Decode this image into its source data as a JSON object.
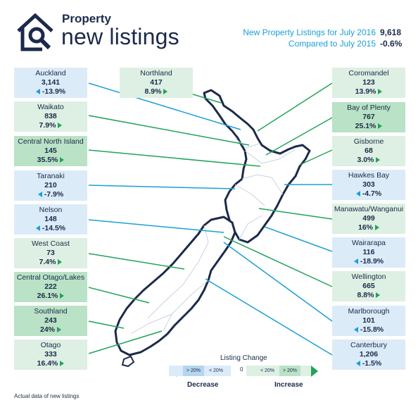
{
  "header": {
    "title_top": "Property",
    "title_main": "new listings",
    "listings_label": "New Property Listings for July 2016",
    "listings_value": "9,618",
    "compare_label": "Compared to July 2015",
    "compare_value": "-0.6%"
  },
  "regions": [
    {
      "key": "auckland",
      "name": "Auckland",
      "count": "3,141",
      "change": "-13.9%",
      "trend": "decrease"
    },
    {
      "key": "northland",
      "name": "Northland",
      "count": "417",
      "change": "8.9%",
      "trend": "increase"
    },
    {
      "key": "coromandel",
      "name": "Coromandel",
      "count": "123",
      "change": "13.9%",
      "trend": "increase"
    },
    {
      "key": "waikato",
      "name": "Waikato",
      "count": "838",
      "change": "7.9%",
      "trend": "increase"
    },
    {
      "key": "bay_of_plenty",
      "name": "Bay of Plenty",
      "count": "767",
      "change": "25.1%",
      "trend": "increase"
    },
    {
      "key": "central_north_island",
      "name": "Central North Island",
      "count": "145",
      "change": "35.5%",
      "trend": "increase"
    },
    {
      "key": "gisborne",
      "name": "Gisborne",
      "count": "68",
      "change": "3.0%",
      "trend": "increase"
    },
    {
      "key": "taranaki",
      "name": "Taranaki",
      "count": "210",
      "change": "-7.9%",
      "trend": "decrease"
    },
    {
      "key": "hawkes_bay",
      "name": "Hawkes Bay",
      "count": "303",
      "change": "-4.7%",
      "trend": "decrease"
    },
    {
      "key": "nelson",
      "name": "Nelson",
      "count": "148",
      "change": "-14.5%",
      "trend": "decrease"
    },
    {
      "key": "manawatu",
      "name": "Manawatu/Wanganui",
      "count": "499",
      "change": "16%",
      "trend": "increase"
    },
    {
      "key": "west_coast",
      "name": "West Coast",
      "count": "73",
      "change": "7.4%",
      "trend": "increase"
    },
    {
      "key": "wairarapa",
      "name": "Wairarapa",
      "count": "116",
      "change": "-18.9%",
      "trend": "decrease"
    },
    {
      "key": "central_otago",
      "name": "Central Otago/Lakes",
      "count": "222",
      "change": "26.1%",
      "trend": "increase"
    },
    {
      "key": "wellington",
      "name": "Wellington",
      "count": "665",
      "change": "8.8%",
      "trend": "increase"
    },
    {
      "key": "southland",
      "name": "Southland",
      "count": "243",
      "change": "24%",
      "trend": "increase"
    },
    {
      "key": "marlborough",
      "name": "Marlborough",
      "count": "101",
      "change": "-15.8%",
      "trend": "decrease"
    },
    {
      "key": "otago",
      "name": "Otago",
      "count": "333",
      "change": "16.4%",
      "trend": "increase"
    },
    {
      "key": "canterbury",
      "name": "Canterbury",
      "count": "1,206",
      "change": "-1.5%",
      "trend": "decrease"
    }
  ],
  "legend": {
    "title": "Listing Change",
    "dec_gt": "> 20%",
    "dec_lt": "< 20%",
    "zero": "0",
    "inc_lt": "< 20%",
    "inc_gt": "> 20%",
    "decrease_label": "Decrease",
    "increase_label": "Increase"
  },
  "colors": {
    "navy": "#1c2a4a",
    "decrease": "#1aa0d6",
    "increase": "#21a35a"
  },
  "footnote": "Actual data of new listings"
}
